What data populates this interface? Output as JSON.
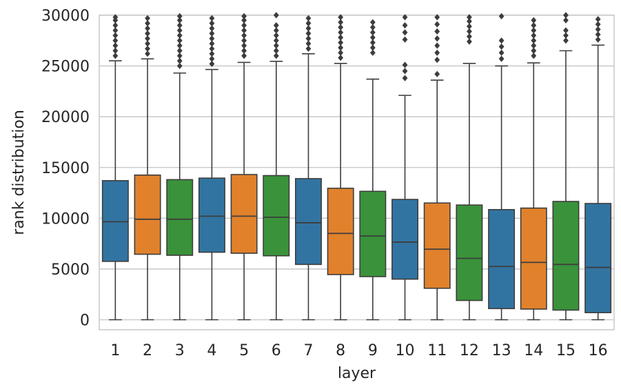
{
  "chart_data": {
    "type": "box",
    "xlabel": "layer",
    "ylabel": "rank distribution",
    "categories": [
      "1",
      "2",
      "3",
      "4",
      "5",
      "6",
      "7",
      "8",
      "9",
      "10",
      "11",
      "12",
      "13",
      "14",
      "15",
      "16"
    ],
    "ylim": [
      -1000,
      30000
    ],
    "yticks": [
      0,
      5000,
      10000,
      15000,
      20000,
      25000,
      30000
    ],
    "yticklabels": [
      "0",
      "5000",
      "10000",
      "15000",
      "20000",
      "25000",
      "30000"
    ],
    "grid": true,
    "palette": [
      "#3274a1",
      "#e1812c",
      "#3a923a"
    ],
    "boxes": [
      {
        "category": "1",
        "color": "#3274a1",
        "whisker_low": 0,
        "q1": 5750,
        "median": 9650,
        "q3": 13700,
        "whisker_high": 25500,
        "outliers": [
          26000,
          26500,
          27000,
          27500,
          28000,
          28500,
          29000,
          29500,
          29800
        ]
      },
      {
        "category": "2",
        "color": "#e1812c",
        "whisker_low": 0,
        "q1": 6450,
        "median": 9900,
        "q3": 14250,
        "whisker_high": 25700,
        "outliers": [
          26200,
          26700,
          27200,
          27700,
          28200,
          28700,
          29200,
          29700
        ]
      },
      {
        "category": "3",
        "color": "#3a923a",
        "whisker_low": 0,
        "q1": 6350,
        "median": 9900,
        "q3": 13800,
        "whisker_high": 24300,
        "outliers": [
          25000,
          25500,
          26000,
          26500,
          27000,
          27500,
          28000,
          28500,
          29000,
          29500,
          29900
        ]
      },
      {
        "category": "4",
        "color": "#3274a1",
        "whisker_low": 0,
        "q1": 6650,
        "median": 10200,
        "q3": 13950,
        "whisker_high": 24650,
        "outliers": [
          25200,
          25700,
          26200,
          26700,
          27200,
          27700,
          28200,
          28700,
          29200,
          29700
        ]
      },
      {
        "category": "5",
        "color": "#e1812c",
        "whisker_low": 0,
        "q1": 6550,
        "median": 10200,
        "q3": 14300,
        "whisker_high": 25350,
        "outliers": [
          26000,
          26500,
          27000,
          27500,
          28000,
          28500,
          29000,
          29500,
          29900
        ]
      },
      {
        "category": "6",
        "color": "#3a923a",
        "whisker_low": 0,
        "q1": 6300,
        "median": 10100,
        "q3": 14200,
        "whisker_high": 25450,
        "outliers": [
          26000,
          26500,
          27000,
          27500,
          28000,
          28500,
          29000,
          30000
        ]
      },
      {
        "category": "7",
        "color": "#3274a1",
        "whisker_low": 0,
        "q1": 5450,
        "median": 9550,
        "q3": 13900,
        "whisker_high": 26200,
        "outliers": [
          26700,
          27200,
          27700,
          28200,
          28700,
          29200,
          29700
        ]
      },
      {
        "category": "8",
        "color": "#e1812c",
        "whisker_low": 0,
        "q1": 4450,
        "median": 8500,
        "q3": 12950,
        "whisker_high": 25250,
        "outliers": [
          25800,
          26300,
          26800,
          27300,
          27800,
          28300,
          28800,
          29300,
          29800
        ]
      },
      {
        "category": "9",
        "color": "#3a923a",
        "whisker_low": 0,
        "q1": 4250,
        "median": 8250,
        "q3": 12650,
        "whisker_high": 23700,
        "outliers": [
          26300,
          26800,
          27300,
          27800,
          28300,
          28800,
          29300
        ]
      },
      {
        "category": "10",
        "color": "#3274a1",
        "whisker_low": 0,
        "q1": 4000,
        "median": 7650,
        "q3": 11850,
        "whisker_high": 22100,
        "outliers": [
          23800,
          24500,
          25100,
          27600,
          28300,
          29000,
          29800
        ]
      },
      {
        "category": "11",
        "color": "#e1812c",
        "whisker_low": 0,
        "q1": 3100,
        "median": 6950,
        "q3": 11500,
        "whisker_high": 23600,
        "outliers": [
          24200,
          25600,
          26300,
          27000,
          27700,
          28400,
          29100,
          29800
        ]
      },
      {
        "category": "12",
        "color": "#3a923a",
        "whisker_low": 0,
        "q1": 1900,
        "median": 6050,
        "q3": 11300,
        "whisker_high": 25250,
        "outliers": [
          27400,
          27900,
          28400,
          28900,
          29400,
          29800
        ]
      },
      {
        "category": "13",
        "color": "#3274a1",
        "whisker_low": 0,
        "q1": 1100,
        "median": 5250,
        "q3": 10850,
        "whisker_high": 25000,
        "outliers": [
          25700,
          26300,
          26900,
          27500,
          29900
        ]
      },
      {
        "category": "14",
        "color": "#e1812c",
        "whisker_low": 0,
        "q1": 1050,
        "median": 5650,
        "q3": 11000,
        "whisker_high": 25300,
        "outliers": [
          26000,
          26500,
          27000,
          27500,
          28000,
          28500,
          29000,
          29500
        ]
      },
      {
        "category": "15",
        "color": "#3a923a",
        "whisker_low": 0,
        "q1": 950,
        "median": 5450,
        "q3": 11650,
        "whisker_high": 26500,
        "outliers": [
          27500,
          28000,
          28500,
          29500,
          30000
        ]
      },
      {
        "category": "16",
        "color": "#3274a1",
        "whisker_low": 0,
        "q1": 700,
        "median": 5150,
        "q3": 11450,
        "whisker_high": 27050,
        "outliers": [
          27600,
          28100,
          28600,
          29100,
          29600
        ]
      }
    ]
  }
}
